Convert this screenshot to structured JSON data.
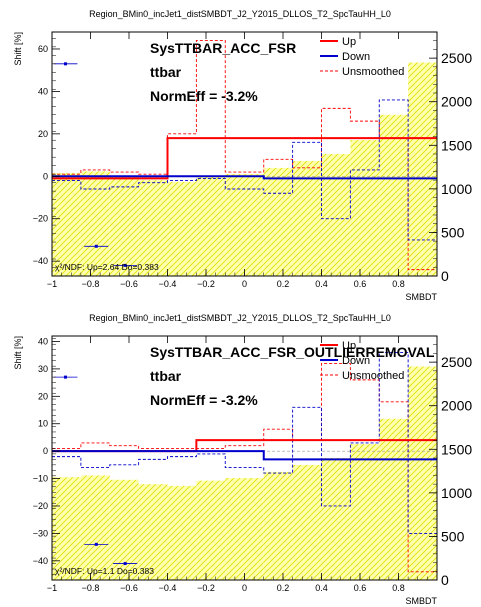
{
  "colors": {
    "up": "#ff0000",
    "down": "#0000cc",
    "unsmoothed": "#ff0000",
    "nominal": "#ffff66",
    "nominal_edge": "#e0e000",
    "axis": "#000000"
  },
  "chart_data": [
    {
      "type": "histogram",
      "title": "Region_BMin0_incJet1_distSMBDT_J2_Y2015_DLLOS_T2_SpcTauHH_L0",
      "xlabel": "SMBDT",
      "ylabel": "Shift [%]",
      "xlim": [
        -1,
        1
      ],
      "ylim": [
        -47,
        68
      ],
      "y2lim": [
        0,
        2800
      ],
      "x_ticks": [
        -1,
        -0.8,
        -0.6,
        -0.4,
        -0.2,
        0,
        0.2,
        0.4,
        0.6,
        0.8
      ],
      "x_tick_labels": [
        "−1",
        "−0.8",
        "−0.6",
        "−0.4",
        "−0.2",
        "0",
        "0.2",
        "0.4",
        "0.6",
        "0.8"
      ],
      "y_ticks": [
        -40,
        -20,
        0,
        20,
        40,
        60
      ],
      "y_tick_labels": [
        "−40",
        "−20",
        "0",
        "20",
        "40",
        "60"
      ],
      "y2_ticks": [
        0,
        500,
        1000,
        1500,
        2000,
        2500
      ],
      "y2_tick_labels": [
        "0",
        "500",
        "1000",
        "1500",
        "2000",
        "2500"
      ],
      "annotations": [
        "SysTTBAR_ACC_FSR",
        "ttbar",
        "NormEff = -3.2%"
      ],
      "chi2_text": "χ²/NDF: Up=2.64 Do=0.383",
      "legend": {
        "position": "top-right",
        "entries": [
          "Up",
          "Down",
          "Unsmoothed"
        ]
      },
      "bins": [
        -1,
        -0.85,
        -0.7,
        -0.55,
        -0.4,
        -0.25,
        -0.1,
        0.1,
        0.25,
        0.4,
        0.55,
        0.7,
        0.85,
        1
      ],
      "nominal": [
        1180,
        1200,
        1150,
        1100,
        1080,
        1140,
        1170,
        1240,
        1320,
        1400,
        1560,
        1850,
        2450
      ],
      "series": [
        {
          "name": "Up",
          "style": "solid",
          "values": [
            -1,
            -1,
            -1,
            -1,
            18,
            18,
            18,
            18,
            18,
            18,
            18,
            18,
            18
          ]
        },
        {
          "name": "Down",
          "style": "solid",
          "values": [
            0,
            0,
            0,
            0,
            0,
            0,
            0,
            -1,
            -1,
            -1,
            -1,
            -1,
            -1
          ]
        },
        {
          "name": "Unsmoothed",
          "style": "dashed-red",
          "values": [
            1,
            3,
            2,
            1,
            20,
            64,
            2,
            8,
            4,
            32,
            26,
            18,
            -44
          ]
        },
        {
          "name": "",
          "style": "dashed-blue",
          "values": [
            -2,
            -6,
            -5,
            -3,
            -2,
            -1,
            -6,
            -8,
            16,
            -20,
            3,
            36,
            -30
          ]
        }
      ],
      "markers": [
        {
          "x": -0.93,
          "y": 53
        },
        {
          "x": -0.77,
          "y": -33
        },
        {
          "x": -0.62,
          "y": -42
        }
      ]
    },
    {
      "type": "histogram",
      "title": "Region_BMin0_incJet1_distSMBDT_J2_Y2015_DLLOS_T2_SpcTauHH_L0",
      "xlabel": "SMBDT",
      "ylabel": "Shift [%]",
      "xlim": [
        -1,
        1
      ],
      "ylim": [
        -47,
        42
      ],
      "y2lim": [
        0,
        2800
      ],
      "x_ticks": [
        -1,
        -0.8,
        -0.6,
        -0.4,
        -0.2,
        0,
        0.2,
        0.4,
        0.6,
        0.8
      ],
      "x_tick_labels": [
        "−1",
        "−0.8",
        "−0.6",
        "−0.4",
        "−0.2",
        "0",
        "0.2",
        "0.4",
        "0.6",
        "0.8"
      ],
      "y_ticks": [
        -40,
        -30,
        -20,
        -10,
        0,
        10,
        20,
        30,
        40
      ],
      "y_tick_labels": [
        "−40",
        "−30",
        "−20",
        "−10",
        "0",
        "10",
        "20",
        "30",
        "40"
      ],
      "y2_ticks": [
        0,
        500,
        1000,
        1500,
        2000,
        2500
      ],
      "y2_tick_labels": [
        "0",
        "500",
        "1000",
        "1500",
        "2000",
        "2500"
      ],
      "annotations": [
        "SysTTBAR_ACC_FSR_OUTLIERREMOVAL",
        "ttbar",
        "NormEff = -3.2%"
      ],
      "chi2_text": "χ²/NDF: Up=1.1 Do=0.383",
      "legend": {
        "position": "top-right",
        "entries": [
          "Up",
          "Down",
          "Unsmoothed"
        ]
      },
      "bins": [
        -1,
        -0.85,
        -0.7,
        -0.55,
        -0.4,
        -0.25,
        -0.1,
        0.1,
        0.25,
        0.4,
        0.55,
        0.7,
        0.85,
        1
      ],
      "nominal": [
        1180,
        1200,
        1150,
        1100,
        1080,
        1140,
        1170,
        1240,
        1320,
        1400,
        1560,
        1850,
        2450
      ],
      "series": [
        {
          "name": "Up",
          "style": "solid",
          "values": [
            0,
            0,
            0,
            0,
            0,
            4,
            4,
            4,
            4,
            4,
            4,
            4,
            4
          ]
        },
        {
          "name": "Down",
          "style": "solid",
          "values": [
            0,
            0,
            0,
            0,
            0,
            0,
            0,
            -3,
            -3,
            -3,
            -3,
            -3,
            -3
          ]
        },
        {
          "name": "Unsmoothed",
          "style": "dashed-red",
          "values": [
            1,
            3,
            2,
            1,
            1,
            1,
            2,
            8,
            4,
            32,
            26,
            18,
            -44
          ]
        },
        {
          "name": "",
          "style": "dashed-blue",
          "values": [
            -2,
            -6,
            -5,
            -3,
            -2,
            -1,
            -6,
            -8,
            16,
            -20,
            3,
            36,
            -30
          ]
        }
      ],
      "markers": [
        {
          "x": -0.93,
          "y": 27
        },
        {
          "x": -0.77,
          "y": -34
        },
        {
          "x": -0.62,
          "y": -41
        }
      ]
    }
  ]
}
